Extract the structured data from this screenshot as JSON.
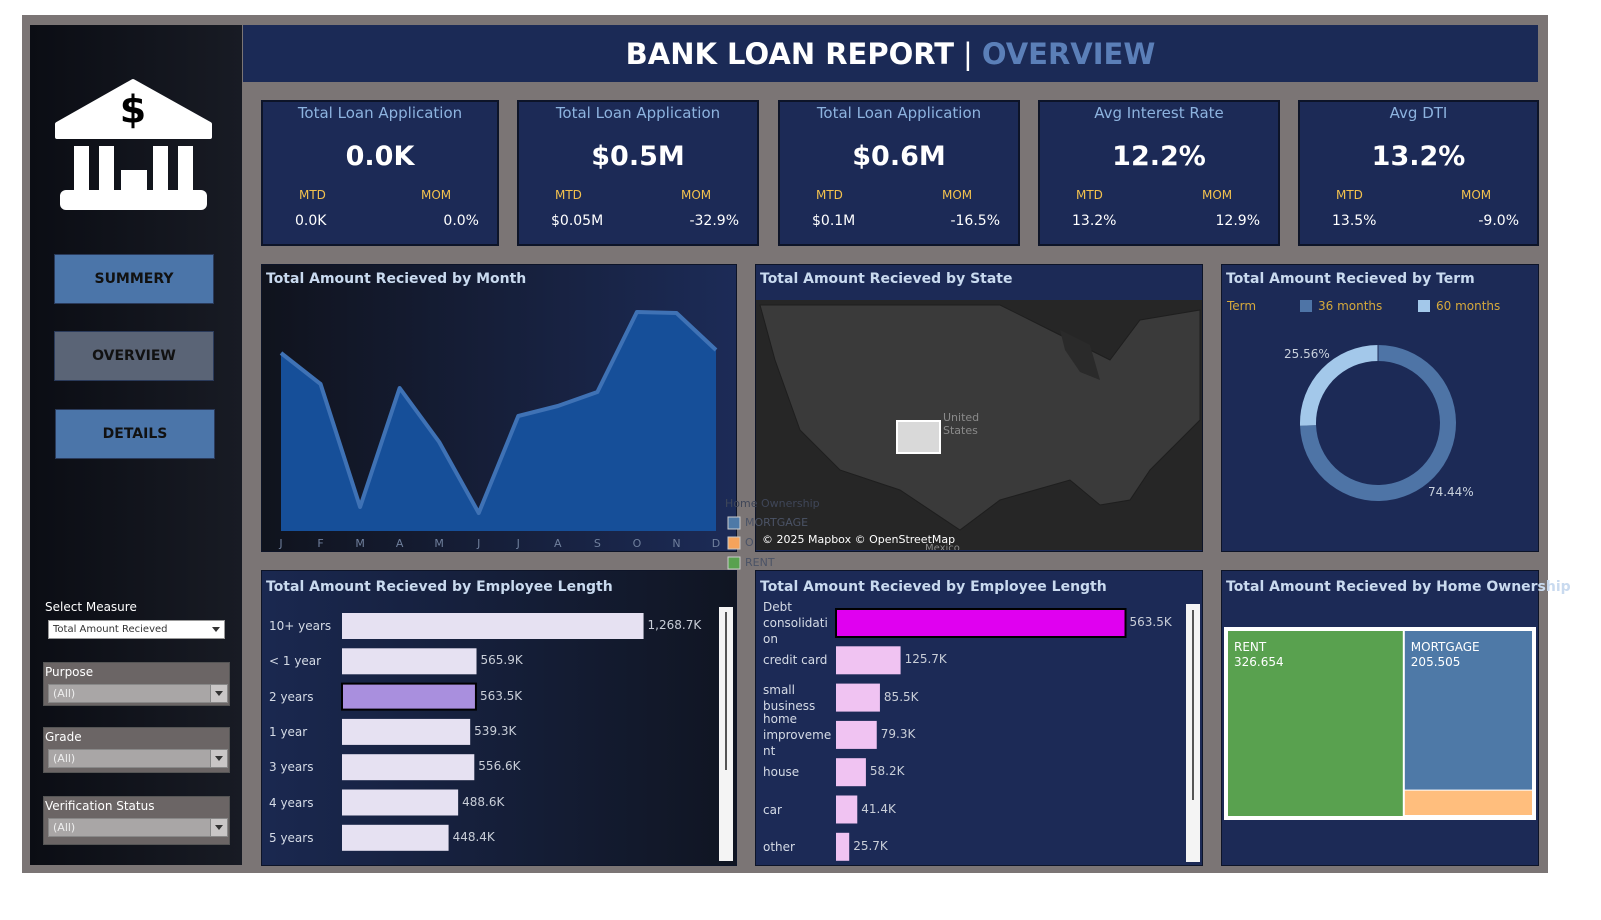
{
  "header": {
    "title": "BANK LOAN REPORT",
    "separator": "|",
    "subtitle": "OVERVIEW"
  },
  "sidebar": {
    "logo_symbol": "$",
    "buttons": [
      "SUMMERY",
      "OVERVIEW",
      "DETAILS"
    ],
    "filters": [
      {
        "label": "Select Measure",
        "value": "Total Amount Recieved"
      },
      {
        "label": "Purpose",
        "value": "(All)"
      },
      {
        "label": "Grade",
        "value": "(All)"
      },
      {
        "label": "Verification Status",
        "value": "(All)"
      }
    ]
  },
  "kpis": [
    {
      "title": "Total Loan Application",
      "value": "0.0K",
      "mtd_label": "MTD",
      "mom_label": "MOM",
      "mtd": "0.0K",
      "mom": "0.0%"
    },
    {
      "title": "Total Loan Application",
      "value": "$0.5M",
      "mtd_label": "MTD",
      "mom_label": "MOM",
      "mtd": "$0.05M",
      "mom": "-32.9%"
    },
    {
      "title": "Total Loan Application",
      "value": "$0.6M",
      "mtd_label": "MTD",
      "mom_label": "MOM",
      "mtd": "$0.1M",
      "mom": "-16.5%"
    },
    {
      "title": "Avg Interest Rate",
      "value": "12.2%",
      "mtd_label": "MTD",
      "mom_label": "MOM",
      "mtd": "13.2%",
      "mom": "12.9%"
    },
    {
      "title": "Avg DTI",
      "value": "13.2%",
      "mtd_label": "MTD",
      "mom_label": "MOM",
      "mtd": "13.5%",
      "mom": "-9.0%"
    }
  ],
  "chart_data": [
    {
      "type": "area",
      "title": "Total Amount Recieved by Month",
      "categories": [
        "J",
        "F",
        "M",
        "A",
        "M",
        "J",
        "J",
        "A",
        "S",
        "O",
        "N",
        "D"
      ],
      "values": [
        178,
        147,
        24,
        143,
        89,
        18,
        115,
        125,
        139,
        219,
        218,
        181
      ],
      "color": "#164f99",
      "line_color": "#3f72b5",
      "ylim": [
        0,
        250
      ]
    },
    {
      "type": "map",
      "title": "Total Amount Recieved by State",
      "legend_title": "Home Ownership",
      "legend": [
        {
          "name": "MORTGAGE",
          "color": "#4e79a7"
        },
        {
          "name": "O",
          "color": "#f5a35c"
        },
        {
          "name": "RENT",
          "color": "#59a14f"
        }
      ],
      "annotations": [
        "United States",
        "Mexico",
        "© 2025 Mapbox © OpenStreetMap"
      ]
    },
    {
      "type": "donut",
      "title": "Total Amount Recieved by Term",
      "legend_title": "Term",
      "categories": [
        "36 months",
        "60 months"
      ],
      "values": [
        74.44,
        25.56
      ],
      "value_labels": [
        "74.44%",
        "25.56%"
      ],
      "colors": [
        "#4e74a6",
        "#a3c8ea"
      ]
    },
    {
      "type": "hbar",
      "title": "Total Amount Recieved by Employee Length",
      "categories": [
        "10+ years",
        "< 1 year",
        "2 years",
        "1 year",
        "3 years",
        "4 years",
        "5 years"
      ],
      "values": [
        1268.7,
        565.9,
        563.5,
        539.3,
        556.6,
        488.6,
        448.4
      ],
      "value_labels": [
        "1,268.7K",
        "565.9K",
        "563.5K",
        "539.3K",
        "556.6K",
        "488.6K",
        "448.4K"
      ],
      "color": "#e6e1f2",
      "highlight": 2,
      "highlight_color": "#a98fde",
      "xlim": [
        0,
        1300
      ]
    },
    {
      "type": "hbar",
      "title": "Total Amount Recieved by Employee Length",
      "categories": [
        "Debt consolidation",
        "credit card",
        "small business",
        "home improvement",
        "house",
        "car",
        "other"
      ],
      "values": [
        563.5,
        125.7,
        85.5,
        79.3,
        58.2,
        41.4,
        25.7
      ],
      "value_labels": [
        "563.5K",
        "125.7K",
        "85.5K",
        "79.3K",
        "58.2K",
        "41.4K",
        "25.7K"
      ],
      "color": "#f0c3f2",
      "highlight": 0,
      "highlight_color": "#e000f0",
      "xlim": [
        0,
        580
      ]
    },
    {
      "type": "treemap",
      "title": "Total Amount Recieved by Home Ownership",
      "categories": [
        "RENT",
        "MORTGAGE",
        null
      ],
      "values": [
        326.654,
        205.505,
        32.7
      ],
      "colors": [
        "#59a14f",
        "#4e79a7",
        "#ffbe7d"
      ]
    }
  ]
}
